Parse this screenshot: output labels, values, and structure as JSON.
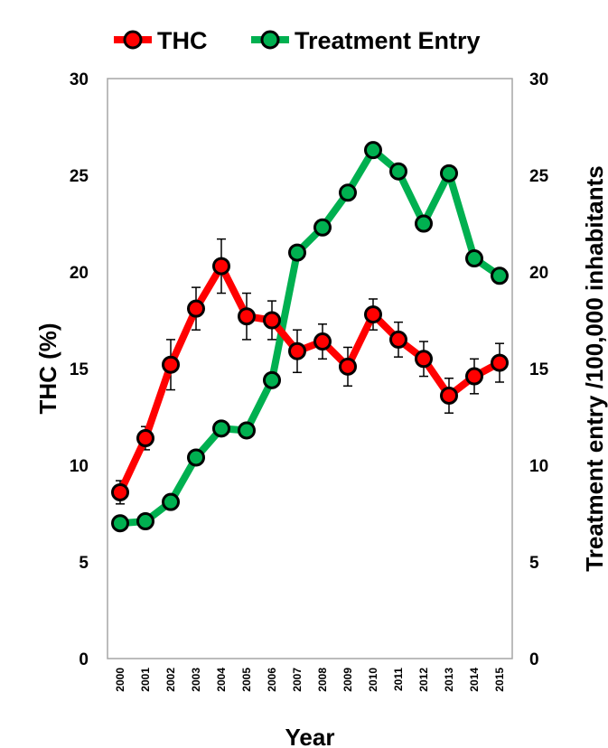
{
  "chart_data": {
    "type": "line",
    "x": [
      "2000",
      "2001",
      "2002",
      "2003",
      "2004",
      "2005",
      "2006",
      "2007",
      "2008",
      "2009",
      "2010",
      "2011",
      "2012",
      "2013",
      "2014",
      "2015"
    ],
    "series": [
      {
        "name": "THC",
        "axis": "left",
        "color": "#ff0000",
        "values": [
          8.6,
          11.4,
          15.2,
          18.1,
          20.3,
          17.7,
          17.5,
          15.9,
          16.4,
          15.1,
          17.8,
          16.5,
          15.5,
          13.6,
          14.6,
          15.3
        ],
        "error": [
          0.6,
          0.6,
          1.3,
          1.1,
          1.4,
          1.2,
          1.0,
          1.1,
          0.9,
          1.0,
          0.8,
          0.9,
          0.9,
          0.9,
          0.9,
          1.0
        ]
      },
      {
        "name": "Treatment Entry",
        "axis": "right",
        "color": "#00b050",
        "values": [
          7.0,
          7.1,
          8.1,
          10.4,
          11.9,
          11.8,
          14.4,
          21.0,
          22.3,
          24.1,
          26.3,
          25.2,
          22.5,
          25.1,
          20.7,
          19.8
        ]
      }
    ],
    "xlabel": "Year",
    "ylabel": "THC (%)",
    "y2label": "Treatment entry /100,000 inhabitants",
    "ylim": [
      0,
      30
    ],
    "y2lim": [
      0,
      30
    ],
    "yticks": [
      "0",
      "5",
      "10",
      "15",
      "20",
      "25",
      "30"
    ],
    "y2ticks": [
      "0",
      "5",
      "10",
      "15",
      "20",
      "25",
      "30"
    ],
    "legend_position": "top",
    "grid": false,
    "marker_fill": "#00b050"
  }
}
